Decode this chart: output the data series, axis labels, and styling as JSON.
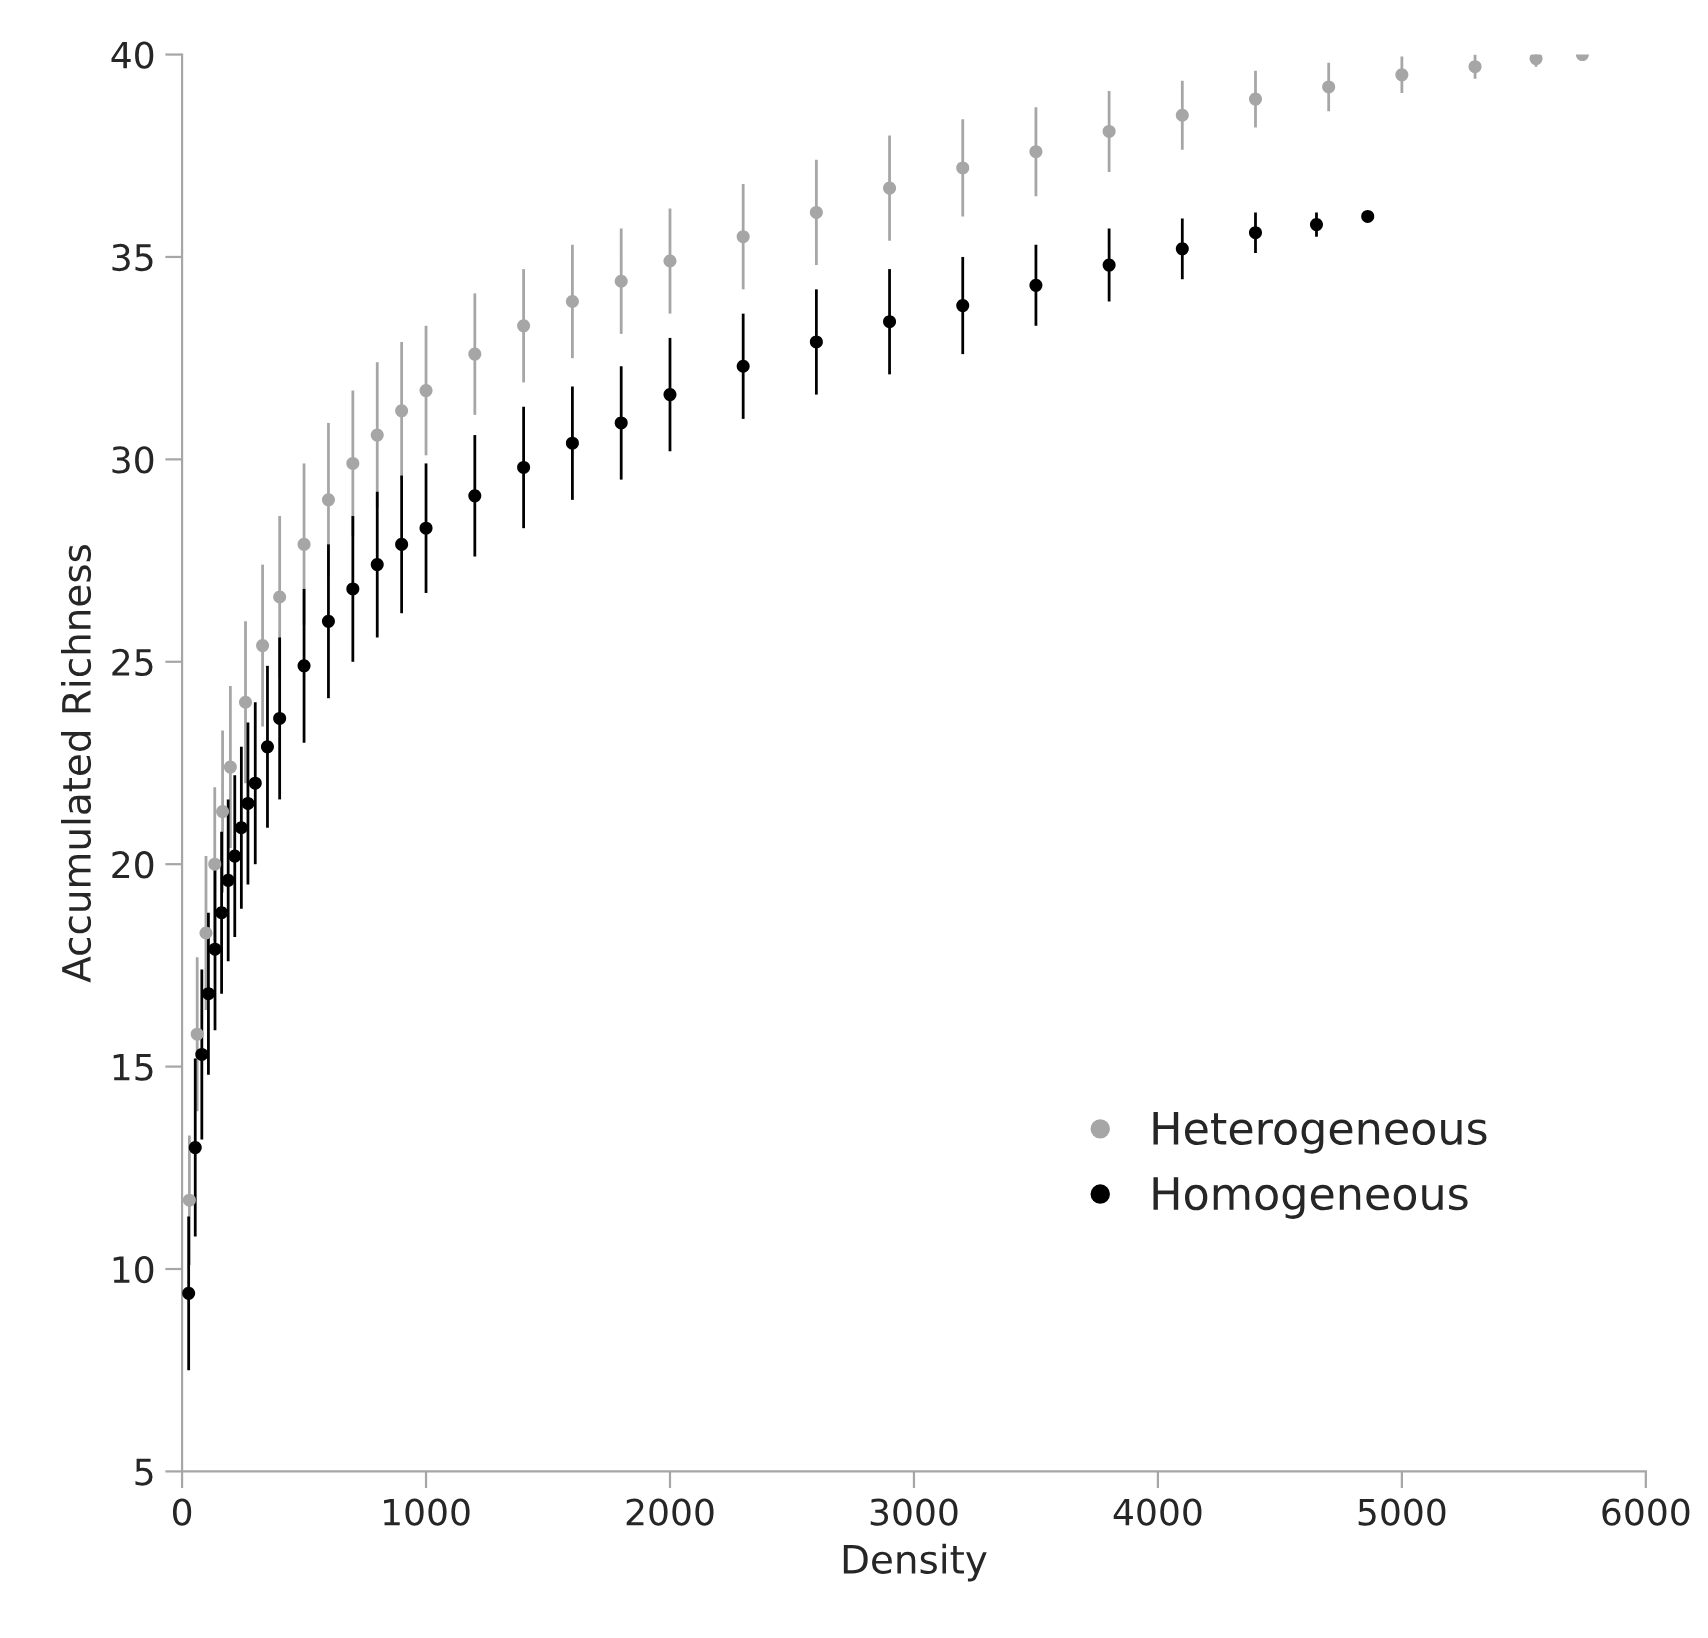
{
  "chart_data": {
    "type": "scatter",
    "xlabel": "Density",
    "ylabel": "Accumulated Richness",
    "xlim": [
      0,
      6000
    ],
    "xticks": [
      0,
      1000,
      2000,
      3000,
      4000,
      5000,
      6000
    ],
    "ylim": [
      5,
      40
    ],
    "yticks": [
      5,
      10,
      15,
      20,
      25,
      30,
      35,
      40
    ],
    "grid": false,
    "legend": "bottom right",
    "marker": "circle",
    "series": [
      {
        "name": "Heterogeneous",
        "color": "#a6a6a6",
        "x": [
          30,
          62,
          98,
          134,
          166,
          198,
          260,
          330,
          400,
          500,
          600,
          700,
          800,
          900,
          1000,
          1200,
          1400,
          1600,
          1800,
          2000,
          2300,
          2600,
          2900,
          3200,
          3500,
          3800,
          4100,
          4400,
          4700,
          5000,
          5300,
          5550,
          5740
        ],
        "values": [
          11.7,
          15.8,
          18.3,
          20.0,
          21.3,
          22.4,
          24.0,
          25.4,
          26.6,
          27.9,
          29.0,
          29.9,
          30.6,
          31.2,
          31.7,
          32.6,
          33.3,
          33.9,
          34.4,
          34.9,
          35.5,
          36.1,
          36.7,
          37.2,
          37.6,
          38.1,
          38.5,
          38.9,
          39.2,
          39.5,
          39.7,
          39.9,
          40.0
        ],
        "errors": [
          1.6,
          1.9,
          1.9,
          1.9,
          2.0,
          2.0,
          2.0,
          2.0,
          2.0,
          2.0,
          1.9,
          1.8,
          1.8,
          1.7,
          1.6,
          1.5,
          1.4,
          1.4,
          1.3,
          1.3,
          1.3,
          1.3,
          1.3,
          1.2,
          1.1,
          1.0,
          0.85,
          0.7,
          0.6,
          0.45,
          0.3,
          0.2,
          0
        ]
      },
      {
        "name": "Homogeneous",
        "color": "#000000",
        "x": [
          27,
          54,
          81,
          108,
          135,
          162,
          189,
          216,
          243,
          270,
          300,
          350,
          400,
          500,
          600,
          700,
          800,
          900,
          1000,
          1200,
          1400,
          1600,
          1800,
          2000,
          2300,
          2600,
          2900,
          3200,
          3500,
          3800,
          4100,
          4400,
          4650,
          4860
        ],
        "values": [
          9.4,
          13.0,
          15.3,
          16.8,
          17.9,
          18.8,
          19.6,
          20.2,
          20.9,
          21.5,
          22.0,
          22.9,
          23.6,
          24.9,
          26.0,
          26.8,
          27.4,
          27.9,
          28.3,
          29.1,
          29.8,
          30.4,
          30.9,
          31.6,
          32.3,
          32.9,
          33.4,
          33.8,
          34.3,
          34.8,
          35.2,
          35.6,
          35.8,
          36.0
        ],
        "errors": [
          1.9,
          2.2,
          2.1,
          2.0,
          2.0,
          2.0,
          2.0,
          2.0,
          2.0,
          2.0,
          2.0,
          2.0,
          2.0,
          1.9,
          1.9,
          1.8,
          1.8,
          1.7,
          1.6,
          1.5,
          1.5,
          1.4,
          1.4,
          1.4,
          1.3,
          1.3,
          1.3,
          1.2,
          1.0,
          0.9,
          0.75,
          0.5,
          0.3,
          0
        ]
      }
    ]
  }
}
